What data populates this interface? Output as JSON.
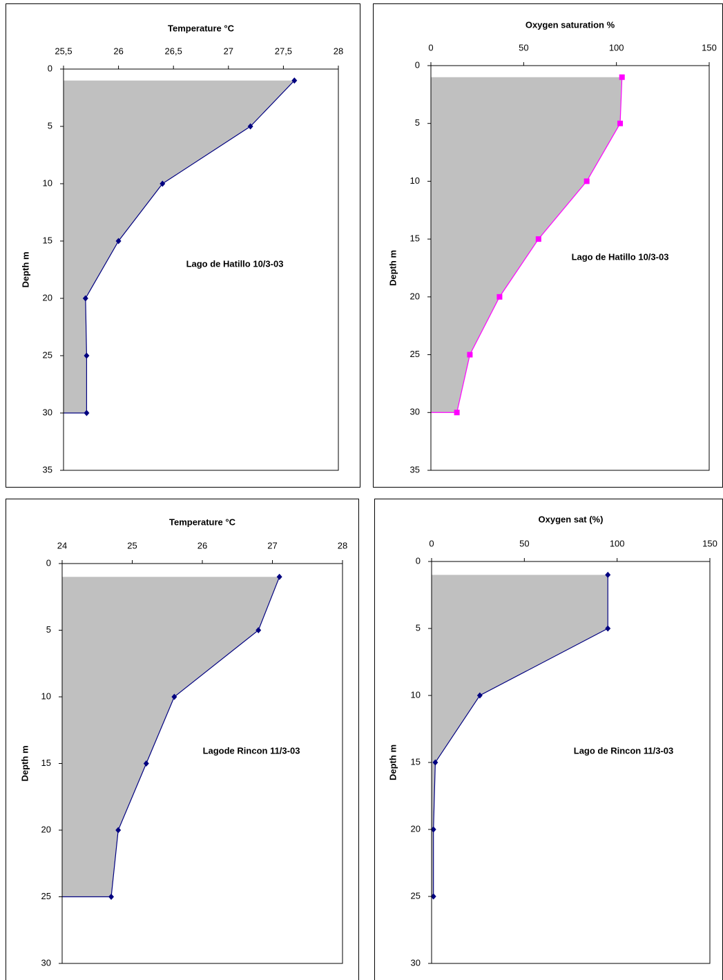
{
  "chart_data": [
    {
      "type": "area",
      "title": "Temperature °C",
      "y_label": "Depth m",
      "annotation": "Lago de Hatillo 10/3-03",
      "series": [
        {
          "color": "#000080",
          "fill": "#c0c0c0",
          "marker": "diamond",
          "x": [
            27.6,
            27.2,
            26.4,
            26.0,
            25.7,
            25.71,
            25.71
          ],
          "values": [
            1,
            5,
            10,
            15,
            20,
            25,
            30
          ]
        }
      ],
      "xlim": [
        25.5,
        28
      ],
      "xticks": [
        {
          "value": 25.5,
          "label": "25,5"
        },
        26,
        {
          "value": 26.5,
          "label": "26,5"
        },
        27,
        {
          "value": 27.5,
          "label": "27,5"
        },
        28
      ],
      "ylim": [
        0,
        35
      ],
      "yticks": [
        0,
        5,
        10,
        15,
        20,
        25,
        30,
        35
      ],
      "y_reversed": true,
      "x_axis_top": true,
      "grid": false
    },
    {
      "type": "area",
      "title": "Oxygen saturation %",
      "y_label": "Depth m",
      "annotation": "Lago de Hatillo 10/3-03",
      "series": [
        {
          "color": "#ff00ff",
          "fill": "#c0c0c0",
          "marker": "square",
          "x": [
            103,
            102,
            84,
            58,
            37,
            21,
            14
          ],
          "values": [
            1,
            5,
            10,
            15,
            20,
            25,
            30
          ]
        }
      ],
      "xlim": [
        0,
        150
      ],
      "xticks": [
        0,
        50,
        100,
        150
      ],
      "ylim": [
        0,
        35
      ],
      "yticks": [
        0,
        5,
        10,
        15,
        20,
        25,
        30,
        35
      ],
      "y_reversed": true,
      "x_axis_top": true,
      "grid": false
    },
    {
      "type": "area",
      "title": "Temperature °C",
      "y_label": "Depth m",
      "annotation": "Lagode Rincon 11/3-03",
      "series": [
        {
          "color": "#000080",
          "fill": "#c0c0c0",
          "marker": "diamond",
          "x": [
            27.1,
            26.8,
            25.6,
            25.2,
            24.8,
            24.7
          ],
          "values": [
            1,
            5,
            10,
            15,
            20,
            25
          ]
        }
      ],
      "xlim": [
        24,
        28
      ],
      "xticks": [
        24,
        25,
        26,
        27,
        28
      ],
      "ylim": [
        0,
        30
      ],
      "yticks": [
        0,
        5,
        10,
        15,
        20,
        25,
        30
      ],
      "y_reversed": true,
      "x_axis_top": true,
      "grid": false
    },
    {
      "type": "area",
      "title": "Oxygen sat (%)",
      "y_label": "Depth m",
      "annotation": "Lago de Rincon 11/3-03",
      "series": [
        {
          "color": "#000080",
          "fill": "#c0c0c0",
          "marker": "diamond",
          "x": [
            95,
            95,
            26,
            2,
            1,
            1
          ],
          "values": [
            1,
            5,
            10,
            15,
            20,
            25
          ]
        }
      ],
      "xlim": [
        0,
        150
      ],
      "xticks": [
        0,
        50,
        100,
        150
      ],
      "ylim": [
        0,
        30
      ],
      "yticks": [
        0,
        5,
        10,
        15,
        20,
        25,
        30
      ],
      "y_reversed": true,
      "x_axis_top": true,
      "grid": false
    }
  ]
}
